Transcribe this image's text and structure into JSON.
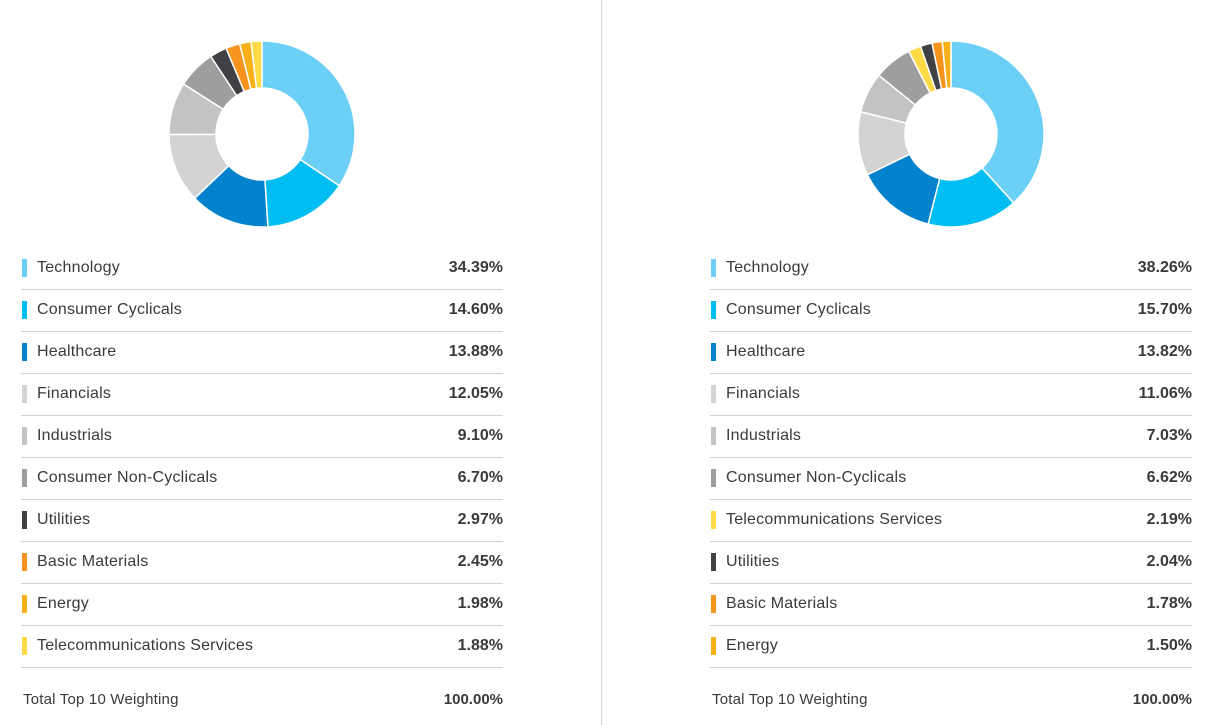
{
  "colors": {
    "Technology": "#6ccff6",
    "Consumer Cyclicals": "#00bdf2",
    "Healthcare": "#0482cb",
    "Financials": "#d3d3d3",
    "Industrials": "#c3c3c3",
    "Consumer Non-Cyclicals": "#9e9e9e",
    "Utilities": "#3f4144",
    "Basic Materials": "#f7941e",
    "Energy": "#f8b019",
    "Telecommunications Services": "#ffda47"
  },
  "chart_data": [
    {
      "type": "pie",
      "title": "",
      "categories": [
        "Technology",
        "Consumer Cyclicals",
        "Healthcare",
        "Financials",
        "Industrials",
        "Consumer Non-Cyclicals",
        "Utilities",
        "Basic Materials",
        "Energy",
        "Telecommunications Services"
      ],
      "values": [
        34.39,
        14.6,
        13.88,
        12.05,
        9.1,
        6.7,
        2.97,
        2.45,
        1.98,
        1.88
      ],
      "value_labels": [
        "34.39%",
        "14.60%",
        "13.88%",
        "12.05%",
        "9.10%",
        "6.70%",
        "2.97%",
        "2.45%",
        "1.98%",
        "1.88%"
      ],
      "total_label": "Total Top 10 Weighting",
      "total_value": "100.00%"
    },
    {
      "type": "pie",
      "title": "",
      "categories": [
        "Technology",
        "Consumer Cyclicals",
        "Healthcare",
        "Financials",
        "Industrials",
        "Consumer Non-Cyclicals",
        "Telecommunications Services",
        "Utilities",
        "Basic Materials",
        "Energy"
      ],
      "values": [
        38.26,
        15.7,
        13.82,
        11.06,
        7.03,
        6.62,
        2.19,
        2.04,
        1.78,
        1.5
      ],
      "value_labels": [
        "38.26%",
        "15.70%",
        "13.82%",
        "11.06%",
        "7.03%",
        "6.62%",
        "2.19%",
        "2.04%",
        "1.78%",
        "1.50%"
      ],
      "total_label": "Total Top 10 Weighting",
      "total_value": "100.00%"
    }
  ]
}
